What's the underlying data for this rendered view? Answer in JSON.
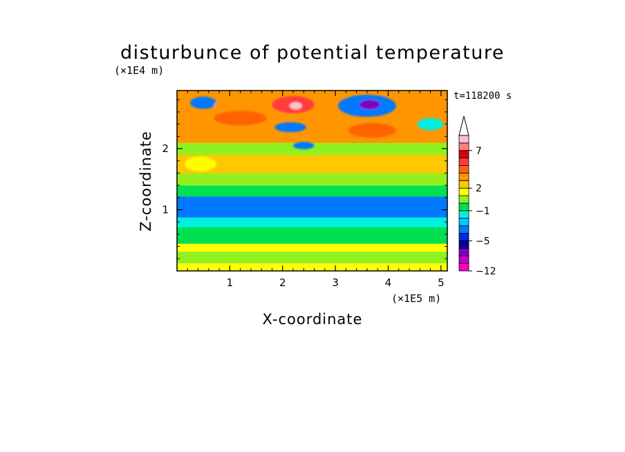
{
  "chart_data": {
    "type": "heatmap",
    "title": "disturbunce of potential temperature",
    "xlabel": "X-coordinate",
    "ylabel": "Z-coordinate",
    "x_unit": "(×1E5 m)",
    "y_unit": "(×1E4 m)",
    "time_label": "t=118200 s",
    "xlim": [
      0,
      5.12
    ],
    "ylim": [
      0,
      2.95
    ],
    "x_ticks": [
      "1",
      "2",
      "3",
      "4",
      "5"
    ],
    "y_ticks": [
      "1",
      "2"
    ],
    "colorbar": {
      "tick_labels": [
        "7",
        "2",
        "−1",
        "−5",
        "−12"
      ],
      "colors": [
        "#ff00c0",
        "#c000c8",
        "#8000c0",
        "#0000a0",
        "#0028d8",
        "#0078ff",
        "#00c8ff",
        "#00f0e0",
        "#00e050",
        "#90f020",
        "#ffff00",
        "#ffc800",
        "#ff9600",
        "#ff6400",
        "#ff3c3c",
        "#d80000",
        "#ff8080",
        "#ffc0c8"
      ]
    },
    "bands": [
      {
        "z": [
          0.0,
          0.13
        ],
        "value": 1
      },
      {
        "z": [
          0.13,
          0.32
        ],
        "value": 0
      },
      {
        "z": [
          0.32,
          0.45
        ],
        "value": 1
      },
      {
        "z": [
          0.45,
          0.72
        ],
        "value": -0.5
      },
      {
        "z": [
          0.72,
          0.88
        ],
        "value": -1.5
      },
      {
        "z": [
          0.88,
          1.22
        ],
        "value": -4
      },
      {
        "z": [
          1.22,
          1.4
        ],
        "value": -1
      },
      {
        "z": [
          1.4,
          1.6
        ],
        "value": 0
      },
      {
        "z": [
          1.6,
          1.9
        ],
        "value": 2
      },
      {
        "z": [
          1.9,
          2.1
        ],
        "value": 0
      },
      {
        "z": [
          2.1,
          2.95
        ],
        "value": 3
      }
    ],
    "features": [
      {
        "x": 0.5,
        "z": 2.75,
        "rx": 0.25,
        "rz": 0.1,
        "value": -4
      },
      {
        "x": 0.9,
        "z": 2.7,
        "rx": 0.2,
        "rz": 0.1,
        "value": 3
      },
      {
        "x": 2.2,
        "z": 2.72,
        "rx": 0.4,
        "rz": 0.14,
        "value": 5
      },
      {
        "x": 2.25,
        "z": 2.7,
        "rx": 0.12,
        "rz": 0.06,
        "value": 8
      },
      {
        "x": 2.15,
        "z": 2.35,
        "rx": 0.3,
        "rz": 0.08,
        "value": -4
      },
      {
        "x": 2.4,
        "z": 2.05,
        "rx": 0.2,
        "rz": 0.06,
        "value": -4
      },
      {
        "x": 3.6,
        "z": 2.7,
        "rx": 0.55,
        "rz": 0.18,
        "value": -4
      },
      {
        "x": 3.65,
        "z": 2.72,
        "rx": 0.2,
        "rz": 0.08,
        "value": -8
      },
      {
        "x": 3.7,
        "z": 2.3,
        "rx": 0.45,
        "rz": 0.12,
        "value": 4
      },
      {
        "x": 1.2,
        "z": 2.5,
        "rx": 0.5,
        "rz": 0.12,
        "value": 4
      },
      {
        "x": 0.45,
        "z": 1.75,
        "rx": 0.3,
        "rz": 0.12,
        "value": 1
      },
      {
        "x": 4.8,
        "z": 2.4,
        "rx": 0.25,
        "rz": 0.1,
        "value": -2
      }
    ]
  }
}
